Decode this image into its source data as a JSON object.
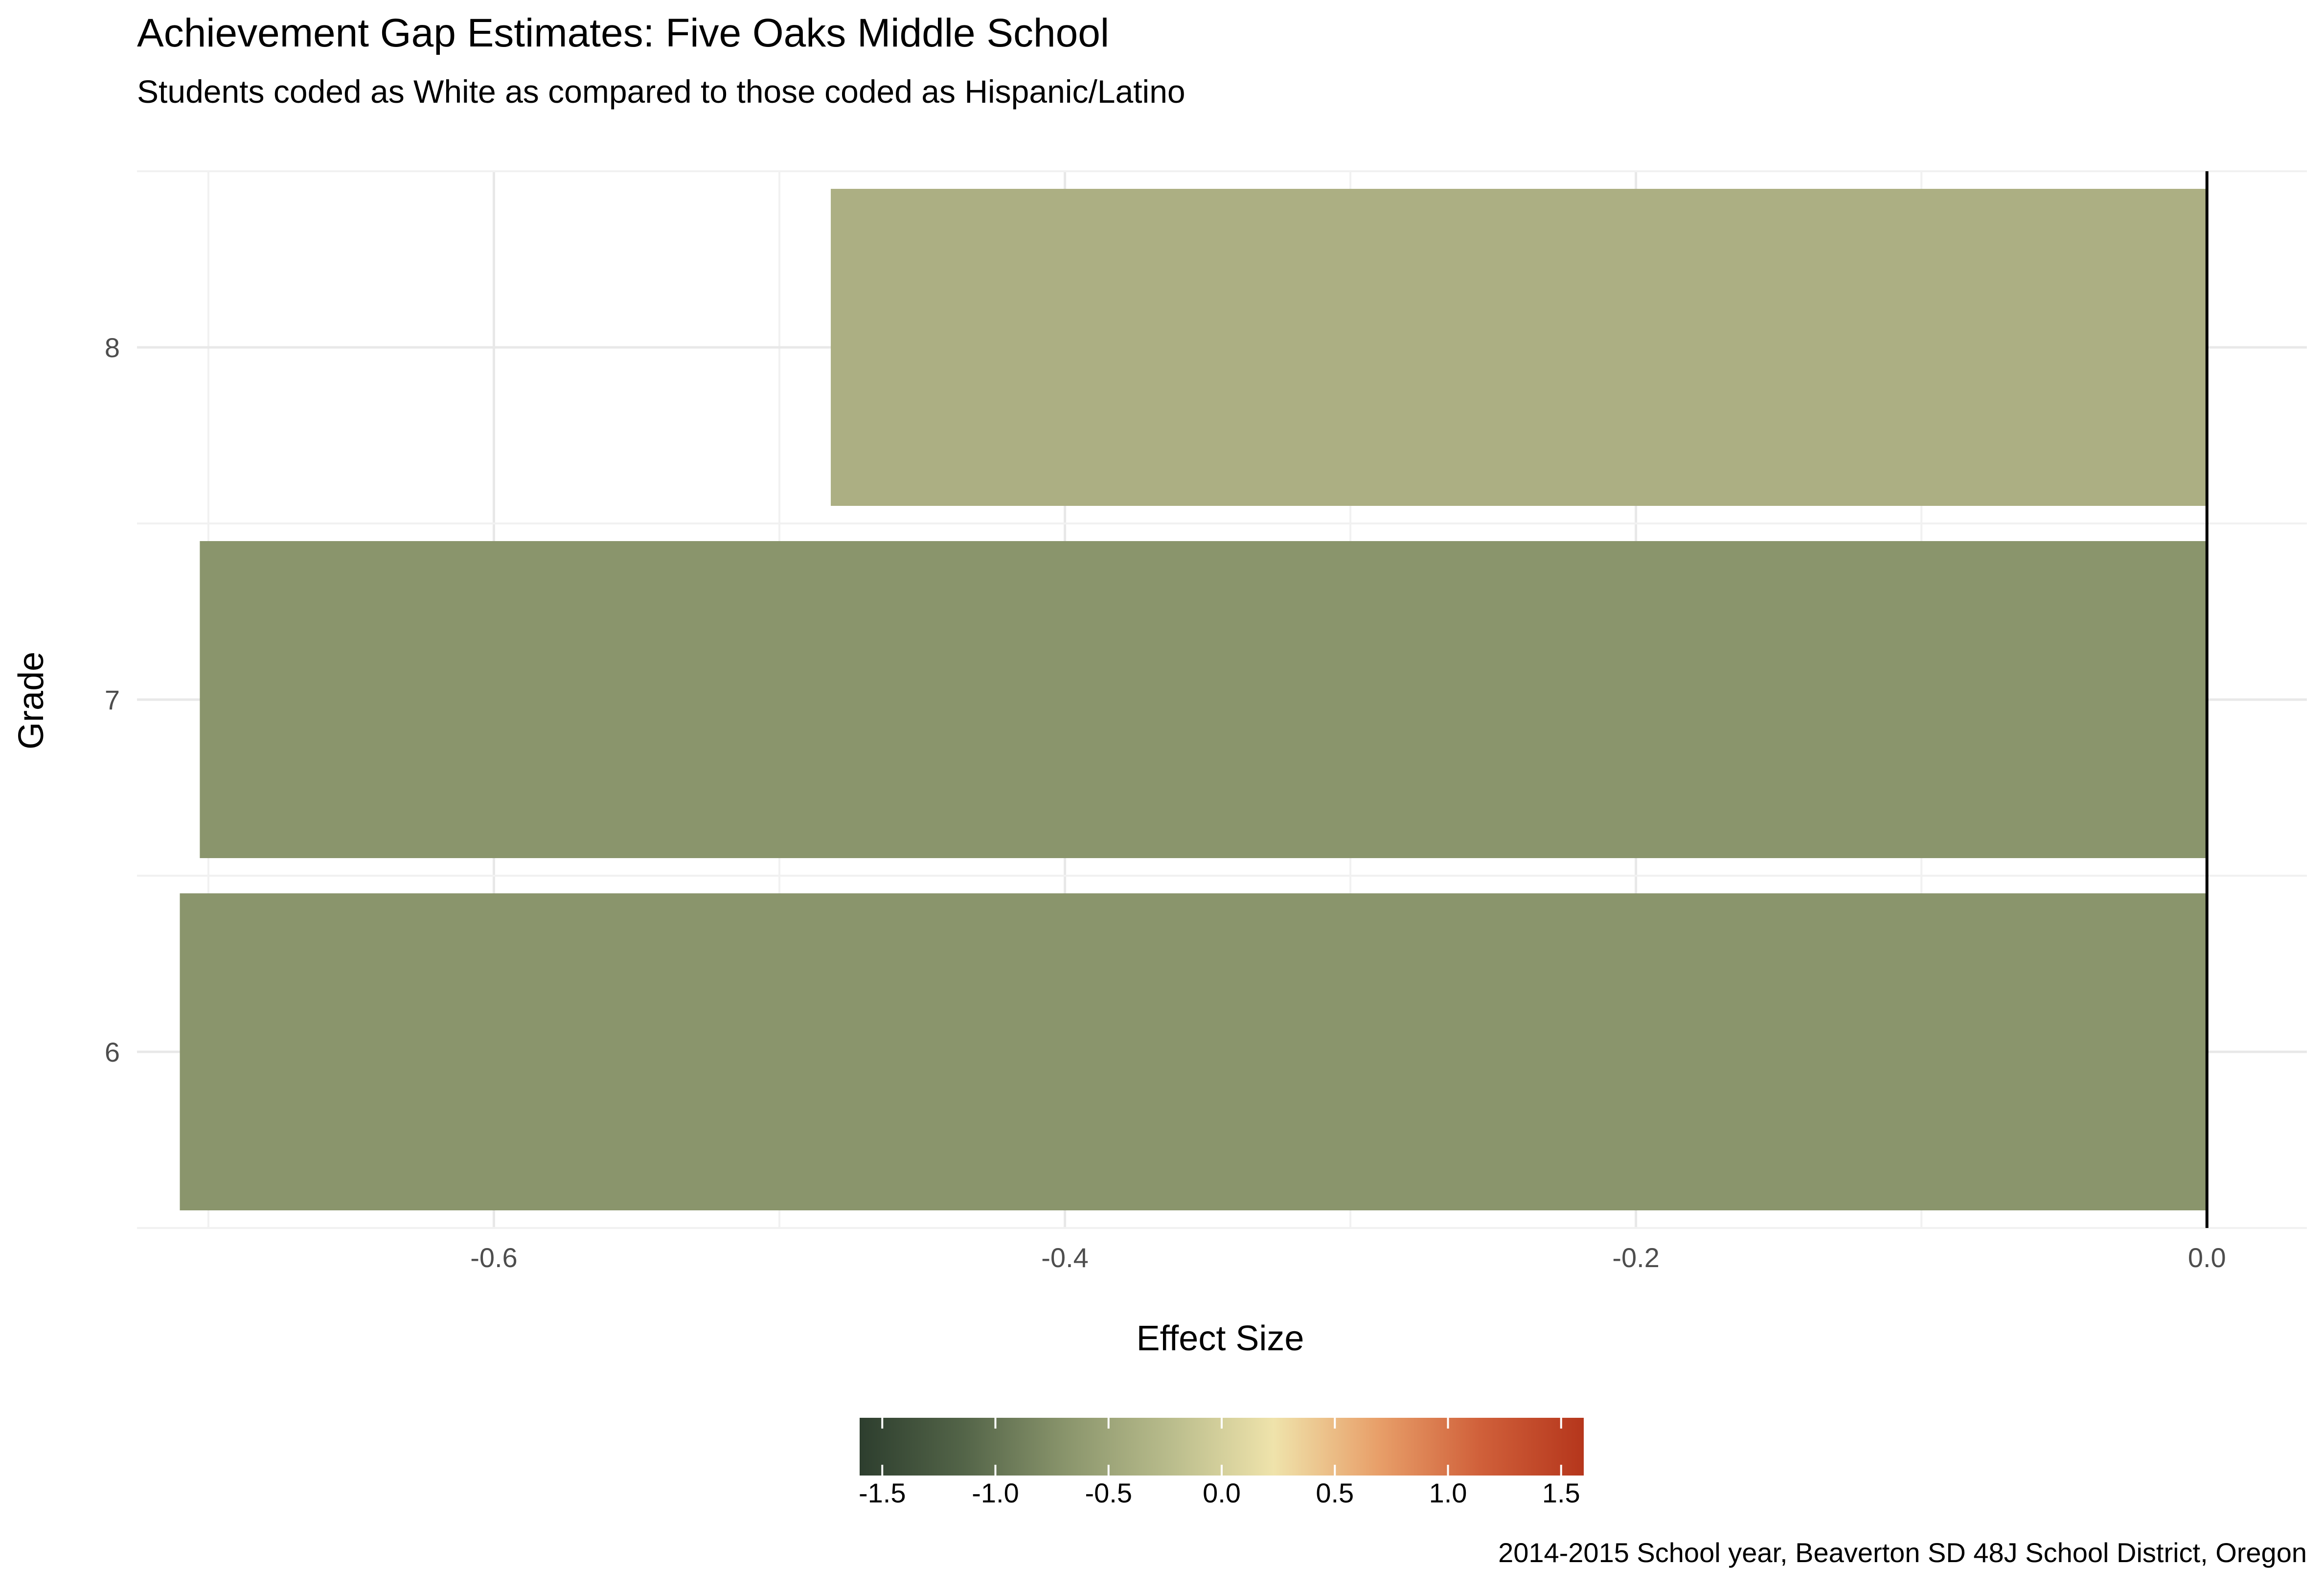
{
  "chart_data": {
    "type": "bar",
    "orientation": "horizontal",
    "title": "Achievement Gap Estimates: Five Oaks Middle School",
    "subtitle": "Students coded as White as compared to those coded as Hispanic/Latino",
    "xlabel": "Effect Size",
    "ylabel": "Grade",
    "categories": [
      "6",
      "7",
      "8"
    ],
    "values": [
      -0.71,
      -0.703,
      -0.482
    ],
    "bar_colors": [
      "#8a956c",
      "#8a956c",
      "#acaf83"
    ],
    "xlim": [
      -0.725,
      0.035
    ],
    "x_ticks": [
      -0.6,
      -0.4,
      -0.2,
      0.0
    ],
    "x_tick_labels": [
      "-0.6",
      "-0.4",
      "-0.2",
      "0.0"
    ],
    "grid": true,
    "reference_line_x": 0,
    "legend": {
      "type": "colorbar",
      "placement": "bottom",
      "range": [
        -1.6,
        1.6
      ],
      "ticks": [
        -1.5,
        -1.0,
        -0.5,
        0.0,
        0.5,
        1.0,
        1.5
      ],
      "tick_labels": [
        "-1.5",
        "-1.0",
        "-0.5",
        "0.0",
        "0.5",
        "1.0",
        "1.5"
      ],
      "colors": [
        "#2d3e2e",
        "#536448",
        "#8a956c",
        "#b9bc8c",
        "#efe3ab",
        "#e8a06a",
        "#d0603a",
        "#b5361c"
      ]
    },
    "caption": "2014-2015 School year, Beaverton SD 48J School District, Oregon"
  }
}
